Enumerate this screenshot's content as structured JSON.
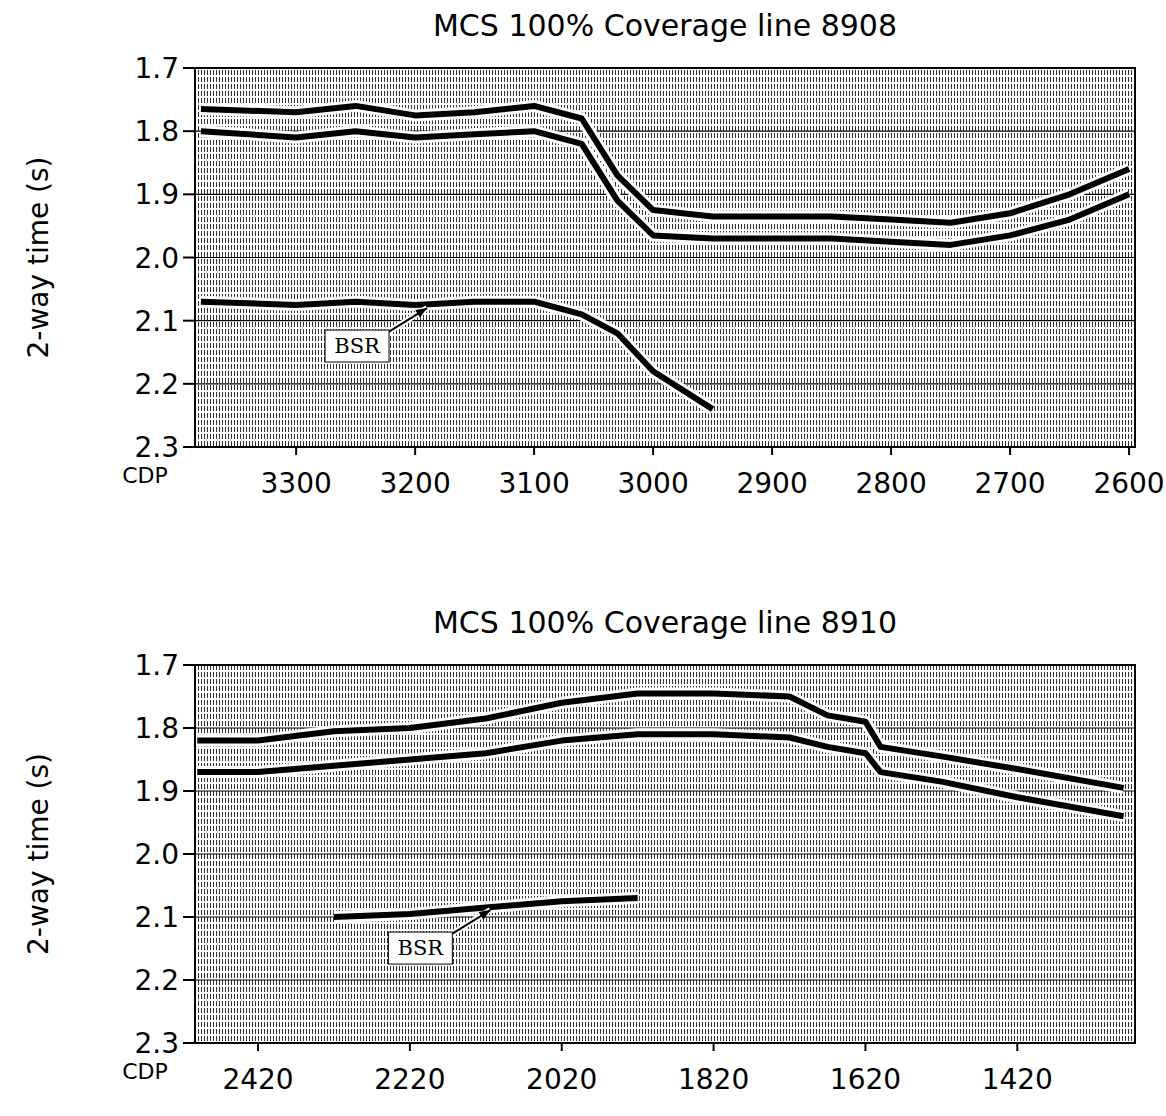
{
  "chart_data": [
    {
      "type": "line",
      "title": "MCS 100% Coverage line 8908",
      "x_label": "CDP",
      "y_label": "2-way time (s)",
      "x": [
        3380,
        3300,
        3250,
        3200,
        3150,
        3100,
        3060,
        3030,
        3000,
        2950,
        2900,
        2850,
        2800,
        2750,
        2700,
        2650,
        2600
      ],
      "series": [
        {
          "color": "#000000",
          "values": [
            1.765,
            1.77,
            1.76,
            1.775,
            1.77,
            1.76,
            1.78,
            1.87,
            1.925,
            1.935,
            1.935,
            1.935,
            1.94,
            1.945,
            1.93,
            1.9,
            1.86
          ]
        },
        {
          "color": "#000000",
          "values": [
            1.8,
            1.81,
            1.8,
            1.81,
            1.805,
            1.8,
            1.82,
            1.91,
            1.965,
            1.97,
            1.97,
            1.97,
            1.975,
            1.98,
            1.965,
            1.94,
            1.9
          ]
        },
        {
          "color": "#000000",
          "values": [
            2.07,
            2.075,
            2.07,
            2.075,
            2.07,
            2.07,
            2.09,
            2.12,
            2.18,
            2.24,
            null,
            null,
            null,
            null,
            null,
            null,
            null
          ]
        }
      ],
      "annotations": [
        {
          "text": "BSR",
          "x": 3190,
          "y": 2.08
        }
      ],
      "xlim": [
        3385,
        2595
      ],
      "xticks": [
        3300,
        3200,
        3100,
        3000,
        2900,
        2800,
        2700,
        2600
      ],
      "ylim": [
        2.3,
        1.7
      ],
      "yticks": [
        1.7,
        1.8,
        1.9,
        {
          "value": 2,
          "label": "2.0"
        },
        2.1,
        2.2,
        2.3
      ],
      "grid": true
    },
    {
      "type": "line",
      "title": "MCS 100% Coverage line 8910",
      "x_label": "CDP",
      "y_label": "2-way time (s)",
      "x": [
        2500,
        2420,
        2320,
        2220,
        2120,
        2020,
        1920,
        1820,
        1720,
        1670,
        1620,
        1600,
        1520,
        1420,
        1280
      ],
      "series": [
        {
          "color": "#000000",
          "values": [
            1.82,
            1.82,
            1.805,
            1.8,
            1.785,
            1.76,
            1.745,
            1.745,
            1.75,
            1.78,
            1.79,
            1.83,
            1.845,
            1.865,
            1.895
          ]
        },
        {
          "color": "#000000",
          "values": [
            1.87,
            1.87,
            1.86,
            1.85,
            1.84,
            1.82,
            1.81,
            1.81,
            1.815,
            1.83,
            1.84,
            1.87,
            1.885,
            1.91,
            1.94
          ]
        },
        {
          "color": "#000000",
          "values": [
            null,
            null,
            2.1,
            2.095,
            2.085,
            2.075,
            2.07,
            null,
            null,
            null,
            null,
            null,
            null,
            null,
            null
          ]
        }
      ],
      "annotations": [
        {
          "text": "BSR",
          "x": 2114,
          "y": 2.089
        }
      ],
      "xlim": [
        2503,
        1265
      ],
      "xticks": [
        2420,
        2220,
        2020,
        1820,
        1620,
        1420
      ],
      "ylim": [
        2.3,
        1.7
      ],
      "yticks": [
        1.7,
        1.8,
        1.9,
        {
          "value": 2,
          "label": "2.0"
        },
        2.1,
        2.2,
        2.3
      ],
      "grid": true
    }
  ]
}
